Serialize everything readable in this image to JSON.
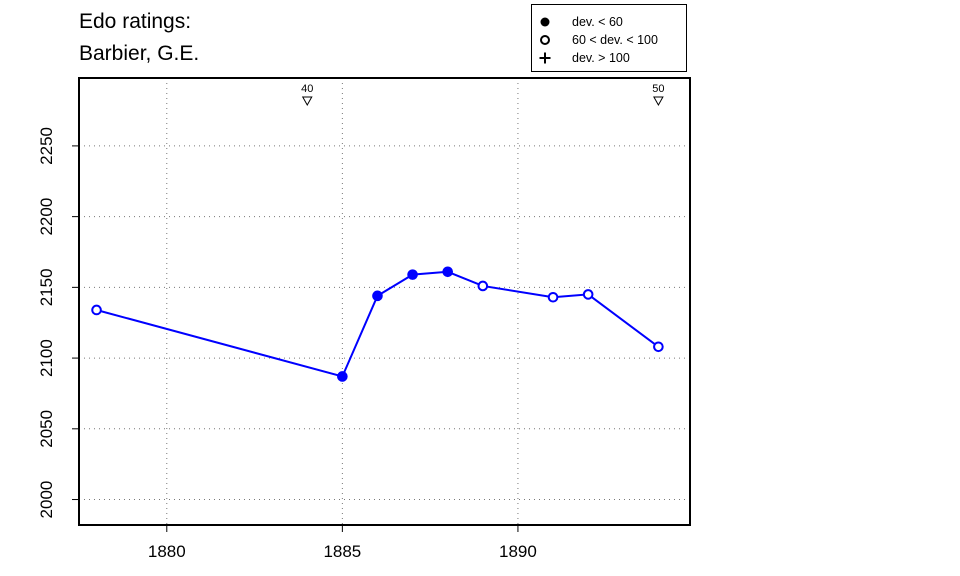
{
  "chart_data": {
    "type": "line",
    "title_lines": [
      "Edo ratings:",
      "Barbier, G.E."
    ],
    "xlabel": "",
    "ylabel": "",
    "xlim": [
      1877.5,
      1894.9
    ],
    "ylim": [
      1982,
      2298
    ],
    "x_ticks": [
      1880,
      1885,
      1890
    ],
    "y_ticks": [
      2000,
      2050,
      2100,
      2150,
      2200,
      2250
    ],
    "grid": true,
    "legend_position": "top-right",
    "legend": [
      {
        "symbol": "filled-circle",
        "label": "dev. < 60"
      },
      {
        "symbol": "open-circle",
        "label": "60 < dev. < 100"
      },
      {
        "symbol": "plus",
        "label": "dev. > 100"
      }
    ],
    "series": [
      {
        "color": "#0000ff",
        "points": [
          {
            "x": 1878,
            "y": 2134,
            "marker": "open-circle"
          },
          {
            "x": 1885,
            "y": 2087,
            "marker": "filled-circle"
          },
          {
            "x": 1886,
            "y": 2144,
            "marker": "filled-circle"
          },
          {
            "x": 1887,
            "y": 2159,
            "marker": "filled-circle"
          },
          {
            "x": 1888,
            "y": 2161,
            "marker": "filled-circle"
          },
          {
            "x": 1889,
            "y": 2151,
            "marker": "open-circle"
          },
          {
            "x": 1891,
            "y": 2143,
            "marker": "open-circle"
          },
          {
            "x": 1892,
            "y": 2145,
            "marker": "open-circle"
          },
          {
            "x": 1894,
            "y": 2108,
            "marker": "open-circle"
          }
        ]
      }
    ],
    "top_markers": [
      {
        "x": 1884,
        "label": "40"
      },
      {
        "x": 1894,
        "label": "50"
      }
    ]
  }
}
